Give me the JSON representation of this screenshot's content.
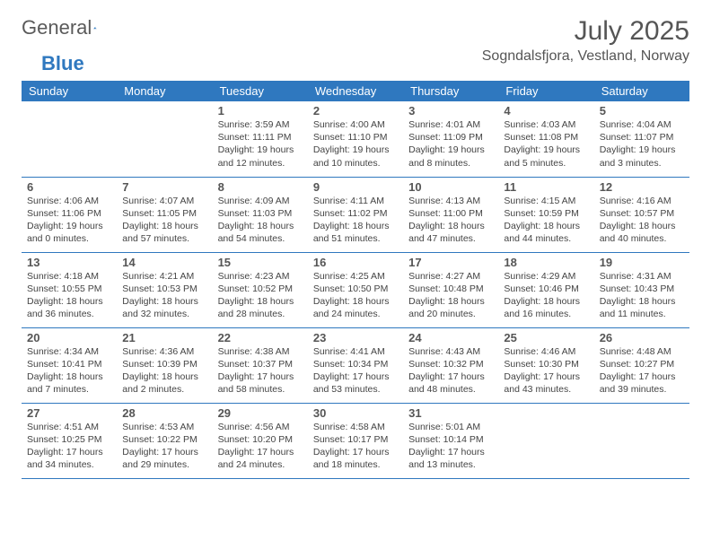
{
  "brand": {
    "name_part1": "General",
    "name_part2": "Blue",
    "colors": {
      "gray": "#5a5a5a",
      "blue": "#2f78bf"
    }
  },
  "title": "July 2025",
  "location": "Sogndalsfjora, Vestland, Norway",
  "calendar": {
    "header_bg": "#2f78bf",
    "header_fg": "#ffffff",
    "border_color": "#2f78bf",
    "day_names": [
      "Sunday",
      "Monday",
      "Tuesday",
      "Wednesday",
      "Thursday",
      "Friday",
      "Saturday"
    ],
    "weeks": [
      [
        null,
        null,
        {
          "n": "1",
          "sr": "3:59 AM",
          "ss": "11:11 PM",
          "dl": "19 hours and 12 minutes."
        },
        {
          "n": "2",
          "sr": "4:00 AM",
          "ss": "11:10 PM",
          "dl": "19 hours and 10 minutes."
        },
        {
          "n": "3",
          "sr": "4:01 AM",
          "ss": "11:09 PM",
          "dl": "19 hours and 8 minutes."
        },
        {
          "n": "4",
          "sr": "4:03 AM",
          "ss": "11:08 PM",
          "dl": "19 hours and 5 minutes."
        },
        {
          "n": "5",
          "sr": "4:04 AM",
          "ss": "11:07 PM",
          "dl": "19 hours and 3 minutes."
        }
      ],
      [
        {
          "n": "6",
          "sr": "4:06 AM",
          "ss": "11:06 PM",
          "dl": "19 hours and 0 minutes."
        },
        {
          "n": "7",
          "sr": "4:07 AM",
          "ss": "11:05 PM",
          "dl": "18 hours and 57 minutes."
        },
        {
          "n": "8",
          "sr": "4:09 AM",
          "ss": "11:03 PM",
          "dl": "18 hours and 54 minutes."
        },
        {
          "n": "9",
          "sr": "4:11 AM",
          "ss": "11:02 PM",
          "dl": "18 hours and 51 minutes."
        },
        {
          "n": "10",
          "sr": "4:13 AM",
          "ss": "11:00 PM",
          "dl": "18 hours and 47 minutes."
        },
        {
          "n": "11",
          "sr": "4:15 AM",
          "ss": "10:59 PM",
          "dl": "18 hours and 44 minutes."
        },
        {
          "n": "12",
          "sr": "4:16 AM",
          "ss": "10:57 PM",
          "dl": "18 hours and 40 minutes."
        }
      ],
      [
        {
          "n": "13",
          "sr": "4:18 AM",
          "ss": "10:55 PM",
          "dl": "18 hours and 36 minutes."
        },
        {
          "n": "14",
          "sr": "4:21 AM",
          "ss": "10:53 PM",
          "dl": "18 hours and 32 minutes."
        },
        {
          "n": "15",
          "sr": "4:23 AM",
          "ss": "10:52 PM",
          "dl": "18 hours and 28 minutes."
        },
        {
          "n": "16",
          "sr": "4:25 AM",
          "ss": "10:50 PM",
          "dl": "18 hours and 24 minutes."
        },
        {
          "n": "17",
          "sr": "4:27 AM",
          "ss": "10:48 PM",
          "dl": "18 hours and 20 minutes."
        },
        {
          "n": "18",
          "sr": "4:29 AM",
          "ss": "10:46 PM",
          "dl": "18 hours and 16 minutes."
        },
        {
          "n": "19",
          "sr": "4:31 AM",
          "ss": "10:43 PM",
          "dl": "18 hours and 11 minutes."
        }
      ],
      [
        {
          "n": "20",
          "sr": "4:34 AM",
          "ss": "10:41 PM",
          "dl": "18 hours and 7 minutes."
        },
        {
          "n": "21",
          "sr": "4:36 AM",
          "ss": "10:39 PM",
          "dl": "18 hours and 2 minutes."
        },
        {
          "n": "22",
          "sr": "4:38 AM",
          "ss": "10:37 PM",
          "dl": "17 hours and 58 minutes."
        },
        {
          "n": "23",
          "sr": "4:41 AM",
          "ss": "10:34 PM",
          "dl": "17 hours and 53 minutes."
        },
        {
          "n": "24",
          "sr": "4:43 AM",
          "ss": "10:32 PM",
          "dl": "17 hours and 48 minutes."
        },
        {
          "n": "25",
          "sr": "4:46 AM",
          "ss": "10:30 PM",
          "dl": "17 hours and 43 minutes."
        },
        {
          "n": "26",
          "sr": "4:48 AM",
          "ss": "10:27 PM",
          "dl": "17 hours and 39 minutes."
        }
      ],
      [
        {
          "n": "27",
          "sr": "4:51 AM",
          "ss": "10:25 PM",
          "dl": "17 hours and 34 minutes."
        },
        {
          "n": "28",
          "sr": "4:53 AM",
          "ss": "10:22 PM",
          "dl": "17 hours and 29 minutes."
        },
        {
          "n": "29",
          "sr": "4:56 AM",
          "ss": "10:20 PM",
          "dl": "17 hours and 24 minutes."
        },
        {
          "n": "30",
          "sr": "4:58 AM",
          "ss": "10:17 PM",
          "dl": "17 hours and 18 minutes."
        },
        {
          "n": "31",
          "sr": "5:01 AM",
          "ss": "10:14 PM",
          "dl": "17 hours and 13 minutes."
        },
        null,
        null
      ]
    ],
    "labels": {
      "sunrise": "Sunrise:",
      "sunset": "Sunset:",
      "daylight": "Daylight:"
    }
  }
}
